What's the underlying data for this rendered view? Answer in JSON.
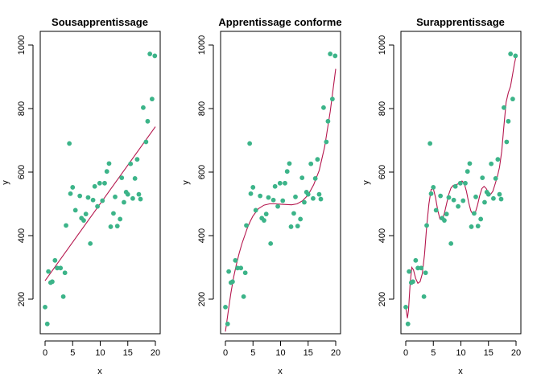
{
  "colors": {
    "points": "#3cb489",
    "curve": "#b5174e",
    "axis": "#000000",
    "background": "#ffffff"
  },
  "chart_data": [
    {
      "type": "scatter",
      "title": "Sousapprentissage",
      "xlabel": "x",
      "ylabel": "y",
      "xlim": [
        0,
        20
      ],
      "ylim": [
        100,
        1000
      ],
      "xticks": [
        0,
        5,
        10,
        15,
        20
      ],
      "yticks": [
        200,
        400,
        600,
        800,
        1000
      ],
      "grid": false,
      "fit": "linear"
    },
    {
      "type": "scatter",
      "title": "Apprentissage conforme",
      "xlabel": "x",
      "ylabel": "y",
      "xlim": [
        0,
        20
      ],
      "ylim": [
        100,
        1000
      ],
      "xticks": [
        0,
        5,
        10,
        15,
        20
      ],
      "yticks": [
        200,
        400,
        600,
        800,
        1000
      ],
      "grid": false,
      "fit": "smooth"
    },
    {
      "type": "scatter",
      "title": "Surapprentissage",
      "xlabel": "x",
      "ylabel": "y",
      "xlim": [
        0,
        20
      ],
      "ylim": [
        100,
        1000
      ],
      "xticks": [
        0,
        5,
        10,
        15,
        20
      ],
      "yticks": [
        200,
        400,
        600,
        800,
        1000
      ],
      "grid": false,
      "fit": "overfit"
    }
  ],
  "points": [
    [
      0.0,
      175
    ],
    [
      0.4,
      122
    ],
    [
      0.6,
      287
    ],
    [
      1.0,
      252
    ],
    [
      1.3,
      255
    ],
    [
      1.8,
      322
    ],
    [
      2.2,
      298
    ],
    [
      2.8,
      298
    ],
    [
      3.3,
      208
    ],
    [
      3.6,
      283
    ],
    [
      3.8,
      432
    ],
    [
      4.4,
      690
    ],
    [
      4.6,
      532
    ],
    [
      5.0,
      552
    ],
    [
      5.5,
      480
    ],
    [
      6.3,
      525
    ],
    [
      6.6,
      455
    ],
    [
      7.0,
      448
    ],
    [
      7.4,
      468
    ],
    [
      7.8,
      520
    ],
    [
      8.2,
      375
    ],
    [
      8.7,
      512
    ],
    [
      9.0,
      555
    ],
    [
      9.5,
      492
    ],
    [
      9.9,
      565
    ],
    [
      10.4,
      510
    ],
    [
      10.8,
      565
    ],
    [
      11.2,
      602
    ],
    [
      11.6,
      627
    ],
    [
      11.9,
      428
    ],
    [
      12.4,
      470
    ],
    [
      12.7,
      522
    ],
    [
      13.1,
      430
    ],
    [
      13.6,
      452
    ],
    [
      13.9,
      582
    ],
    [
      14.3,
      505
    ],
    [
      14.7,
      537
    ],
    [
      15.0,
      530
    ],
    [
      15.5,
      626
    ],
    [
      15.9,
      517
    ],
    [
      16.3,
      580
    ],
    [
      16.7,
      640
    ],
    [
      17.0,
      530
    ],
    [
      17.3,
      515
    ],
    [
      17.8,
      803
    ],
    [
      18.3,
      695
    ],
    [
      18.6,
      760
    ],
    [
      19.0,
      972
    ],
    [
      19.4,
      830
    ],
    [
      19.9,
      966
    ]
  ],
  "fits": {
    "linear": [
      [
        0,
        258
      ],
      [
        20,
        743
      ]
    ],
    "smooth": [
      [
        0,
        98
      ],
      [
        0.5,
        160
      ],
      [
        1,
        220
      ],
      [
        1.5,
        270
      ],
      [
        2,
        310
      ],
      [
        2.5,
        345
      ],
      [
        3,
        375
      ],
      [
        3.5,
        400
      ],
      [
        4,
        425
      ],
      [
        4.5,
        445
      ],
      [
        5,
        462
      ],
      [
        6,
        485
      ],
      [
        7,
        496
      ],
      [
        8,
        500
      ],
      [
        9,
        500
      ],
      [
        10,
        499
      ],
      [
        11,
        498
      ],
      [
        12,
        497
      ],
      [
        13,
        500
      ],
      [
        14,
        510
      ],
      [
        15,
        528
      ],
      [
        16,
        560
      ],
      [
        17,
        605
      ],
      [
        18,
        680
      ],
      [
        19,
        790
      ],
      [
        20,
        925
      ]
    ],
    "overfit": [
      [
        0.0,
        175
      ],
      [
        0.3,
        140
      ],
      [
        0.5,
        165
      ],
      [
        0.8,
        250
      ],
      [
        1.1,
        300
      ],
      [
        1.4,
        292
      ],
      [
        1.8,
        265
      ],
      [
        2.2,
        250
      ],
      [
        2.6,
        255
      ],
      [
        3.0,
        280
      ],
      [
        3.4,
        340
      ],
      [
        3.8,
        430
      ],
      [
        4.2,
        500
      ],
      [
        4.6,
        545
      ],
      [
        5.0,
        548
      ],
      [
        5.4,
        520
      ],
      [
        5.8,
        480
      ],
      [
        6.2,
        452
      ],
      [
        6.6,
        450
      ],
      [
        7.0,
        470
      ],
      [
        7.4,
        500
      ],
      [
        7.8,
        530
      ],
      [
        8.2,
        550
      ],
      [
        8.6,
        558
      ],
      [
        9.0,
        560
      ],
      [
        9.4,
        562
      ],
      [
        9.8,
        568
      ],
      [
        10.2,
        572
      ],
      [
        10.6,
        565
      ],
      [
        11.0,
        540
      ],
      [
        11.4,
        505
      ],
      [
        11.8,
        478
      ],
      [
        12.2,
        466
      ],
      [
        12.6,
        472
      ],
      [
        13.0,
        495
      ],
      [
        13.4,
        525
      ],
      [
        13.8,
        548
      ],
      [
        14.2,
        555
      ],
      [
        14.6,
        548
      ],
      [
        15.0,
        535
      ],
      [
        15.4,
        530
      ],
      [
        15.8,
        540
      ],
      [
        16.2,
        562
      ],
      [
        16.6,
        585
      ],
      [
        17.0,
        615
      ],
      [
        17.4,
        665
      ],
      [
        17.8,
        745
      ],
      [
        18.2,
        820
      ],
      [
        18.6,
        850
      ],
      [
        19.0,
        870
      ],
      [
        19.4,
        910
      ],
      [
        19.7,
        940
      ],
      [
        20.0,
        965
      ]
    ]
  }
}
